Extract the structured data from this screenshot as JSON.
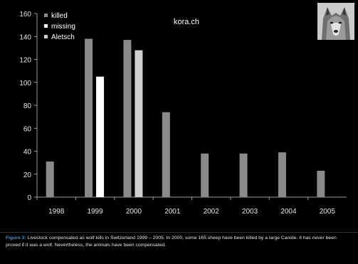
{
  "chart_data": {
    "type": "bar",
    "categories": [
      "1998",
      "1999",
      "2000",
      "2001",
      "2002",
      "2003",
      "2004",
      "2005"
    ],
    "series": [
      {
        "name": "killed",
        "values": [
          31,
          138,
          137,
          74,
          38,
          38,
          39,
          23
        ]
      },
      {
        "name": "missing",
        "values": [
          null,
          105,
          null,
          null,
          null,
          null,
          null,
          null
        ]
      },
      {
        "name": "Aletsch",
        "values": [
          null,
          null,
          128,
          null,
          null,
          null,
          null,
          null
        ]
      }
    ],
    "colors": [
      "#8a8a8a",
      "#ffffff",
      "#cfcfcf"
    ],
    "title": "kora.ch",
    "xlabel": "",
    "ylabel": "",
    "ylim": [
      0,
      160
    ],
    "yticks": [
      "0",
      "20",
      "40",
      "60",
      "80",
      "100",
      "120",
      "140",
      "160"
    ],
    "grid": false,
    "legend_position": "top-left"
  },
  "caption": {
    "label": "Figure 3:",
    "text": "Livestock compensated as wolf kills in Switzerland 1999 – 2005. In 2000, some 165 sheep have been killed by a large Canide. It has never been proved if it was a wolf. Nevertheless, the animals have been compensated."
  },
  "photo": {
    "icon": "wolf-head-photo"
  }
}
